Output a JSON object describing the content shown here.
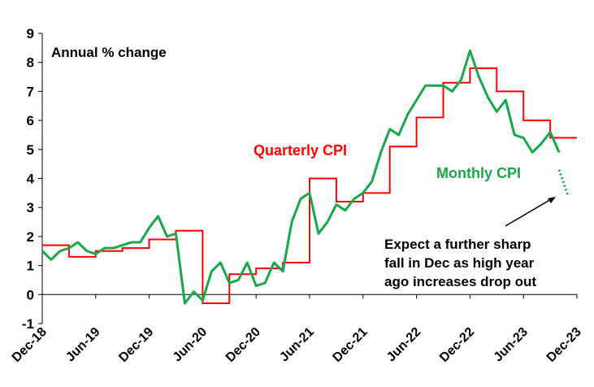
{
  "chart_data": {
    "type": "line",
    "ylabel": "Annual % change",
    "ylim": [
      -1,
      9
    ],
    "yticks": [
      "-1",
      "0",
      "1",
      "2",
      "3",
      "4",
      "5",
      "6",
      "7",
      "8",
      "9"
    ],
    "xticks": [
      "Dec-18",
      "Jun-19",
      "Dec-19",
      "Jun-20",
      "Dec-20",
      "Jun-21",
      "Dec-21",
      "Jun-22",
      "Dec-22",
      "Jun-23",
      "Dec-23"
    ],
    "grid": false,
    "series": [
      {
        "name": "Quarterly CPI",
        "color": "#ff0000",
        "style": "step",
        "x": [
          "Dec-18",
          "Mar-19",
          "Jun-19",
          "Sep-19",
          "Dec-19",
          "Mar-20",
          "Jun-20",
          "Sep-20",
          "Dec-20",
          "Mar-21",
          "Jun-21",
          "Sep-21",
          "Dec-21",
          "Mar-22",
          "Jun-22",
          "Sep-22",
          "Dec-22",
          "Mar-23",
          "Jun-23",
          "Sep-23"
        ],
        "values": [
          1.7,
          1.3,
          1.5,
          1.6,
          1.9,
          2.2,
          -0.3,
          0.7,
          0.9,
          1.1,
          4.0,
          3.2,
          3.5,
          5.1,
          6.1,
          7.3,
          7.8,
          7.0,
          6.0,
          5.4
        ]
      },
      {
        "name": "Monthly CPI",
        "color": "#17a84b",
        "style": "line",
        "x": [
          "Dec-18",
          "Jan-19",
          "Feb-19",
          "Mar-19",
          "Apr-19",
          "May-19",
          "Jun-19",
          "Jul-19",
          "Aug-19",
          "Sep-19",
          "Oct-19",
          "Nov-19",
          "Dec-19",
          "Jan-20",
          "Feb-20",
          "Mar-20",
          "Apr-20",
          "May-20",
          "Jun-20",
          "Jul-20",
          "Aug-20",
          "Sep-20",
          "Oct-20",
          "Nov-20",
          "Dec-20",
          "Jan-21",
          "Feb-21",
          "Mar-21",
          "Apr-21",
          "May-21",
          "Jun-21",
          "Jul-21",
          "Aug-21",
          "Sep-21",
          "Oct-21",
          "Nov-21",
          "Dec-21",
          "Jan-22",
          "Feb-22",
          "Mar-22",
          "Apr-22",
          "May-22",
          "Jun-22",
          "Jul-22",
          "Aug-22",
          "Sep-22",
          "Oct-22",
          "Nov-22",
          "Dec-22",
          "Jan-23",
          "Feb-23",
          "Mar-23",
          "Apr-23",
          "May-23",
          "Jun-23",
          "Jul-23",
          "Aug-23",
          "Sep-23",
          "Oct-23"
        ],
        "values": [
          1.5,
          1.2,
          1.5,
          1.6,
          1.8,
          1.5,
          1.4,
          1.6,
          1.6,
          1.7,
          1.8,
          1.8,
          2.3,
          2.7,
          2.0,
          2.1,
          -0.3,
          0.1,
          -0.2,
          0.8,
          1.1,
          0.4,
          0.5,
          1.1,
          0.3,
          0.4,
          1.1,
          0.8,
          2.5,
          3.3,
          3.5,
          2.1,
          2.5,
          3.1,
          2.9,
          3.3,
          3.5,
          3.9,
          4.9,
          5.7,
          5.5,
          6.2,
          6.7,
          7.2,
          7.2,
          7.2,
          7.0,
          7.4,
          8.4,
          7.5,
          6.8,
          6.3,
          6.7,
          5.5,
          5.4,
          4.9,
          5.2,
          5.6,
          4.9
        ]
      },
      {
        "name": "Monthly CPI projection",
        "color": "#17a84b",
        "style": "dotted",
        "x": [
          "Oct-23",
          "Nov-23"
        ],
        "values": [
          4.3,
          3.4
        ]
      }
    ],
    "annotations": {
      "quarterly_label": "Quarterly CPI",
      "monthly_label": "Monthly CPI",
      "note_lines": [
        "Expect a further sharp",
        "fall in Dec as high year",
        "ago increases drop out"
      ]
    }
  }
}
